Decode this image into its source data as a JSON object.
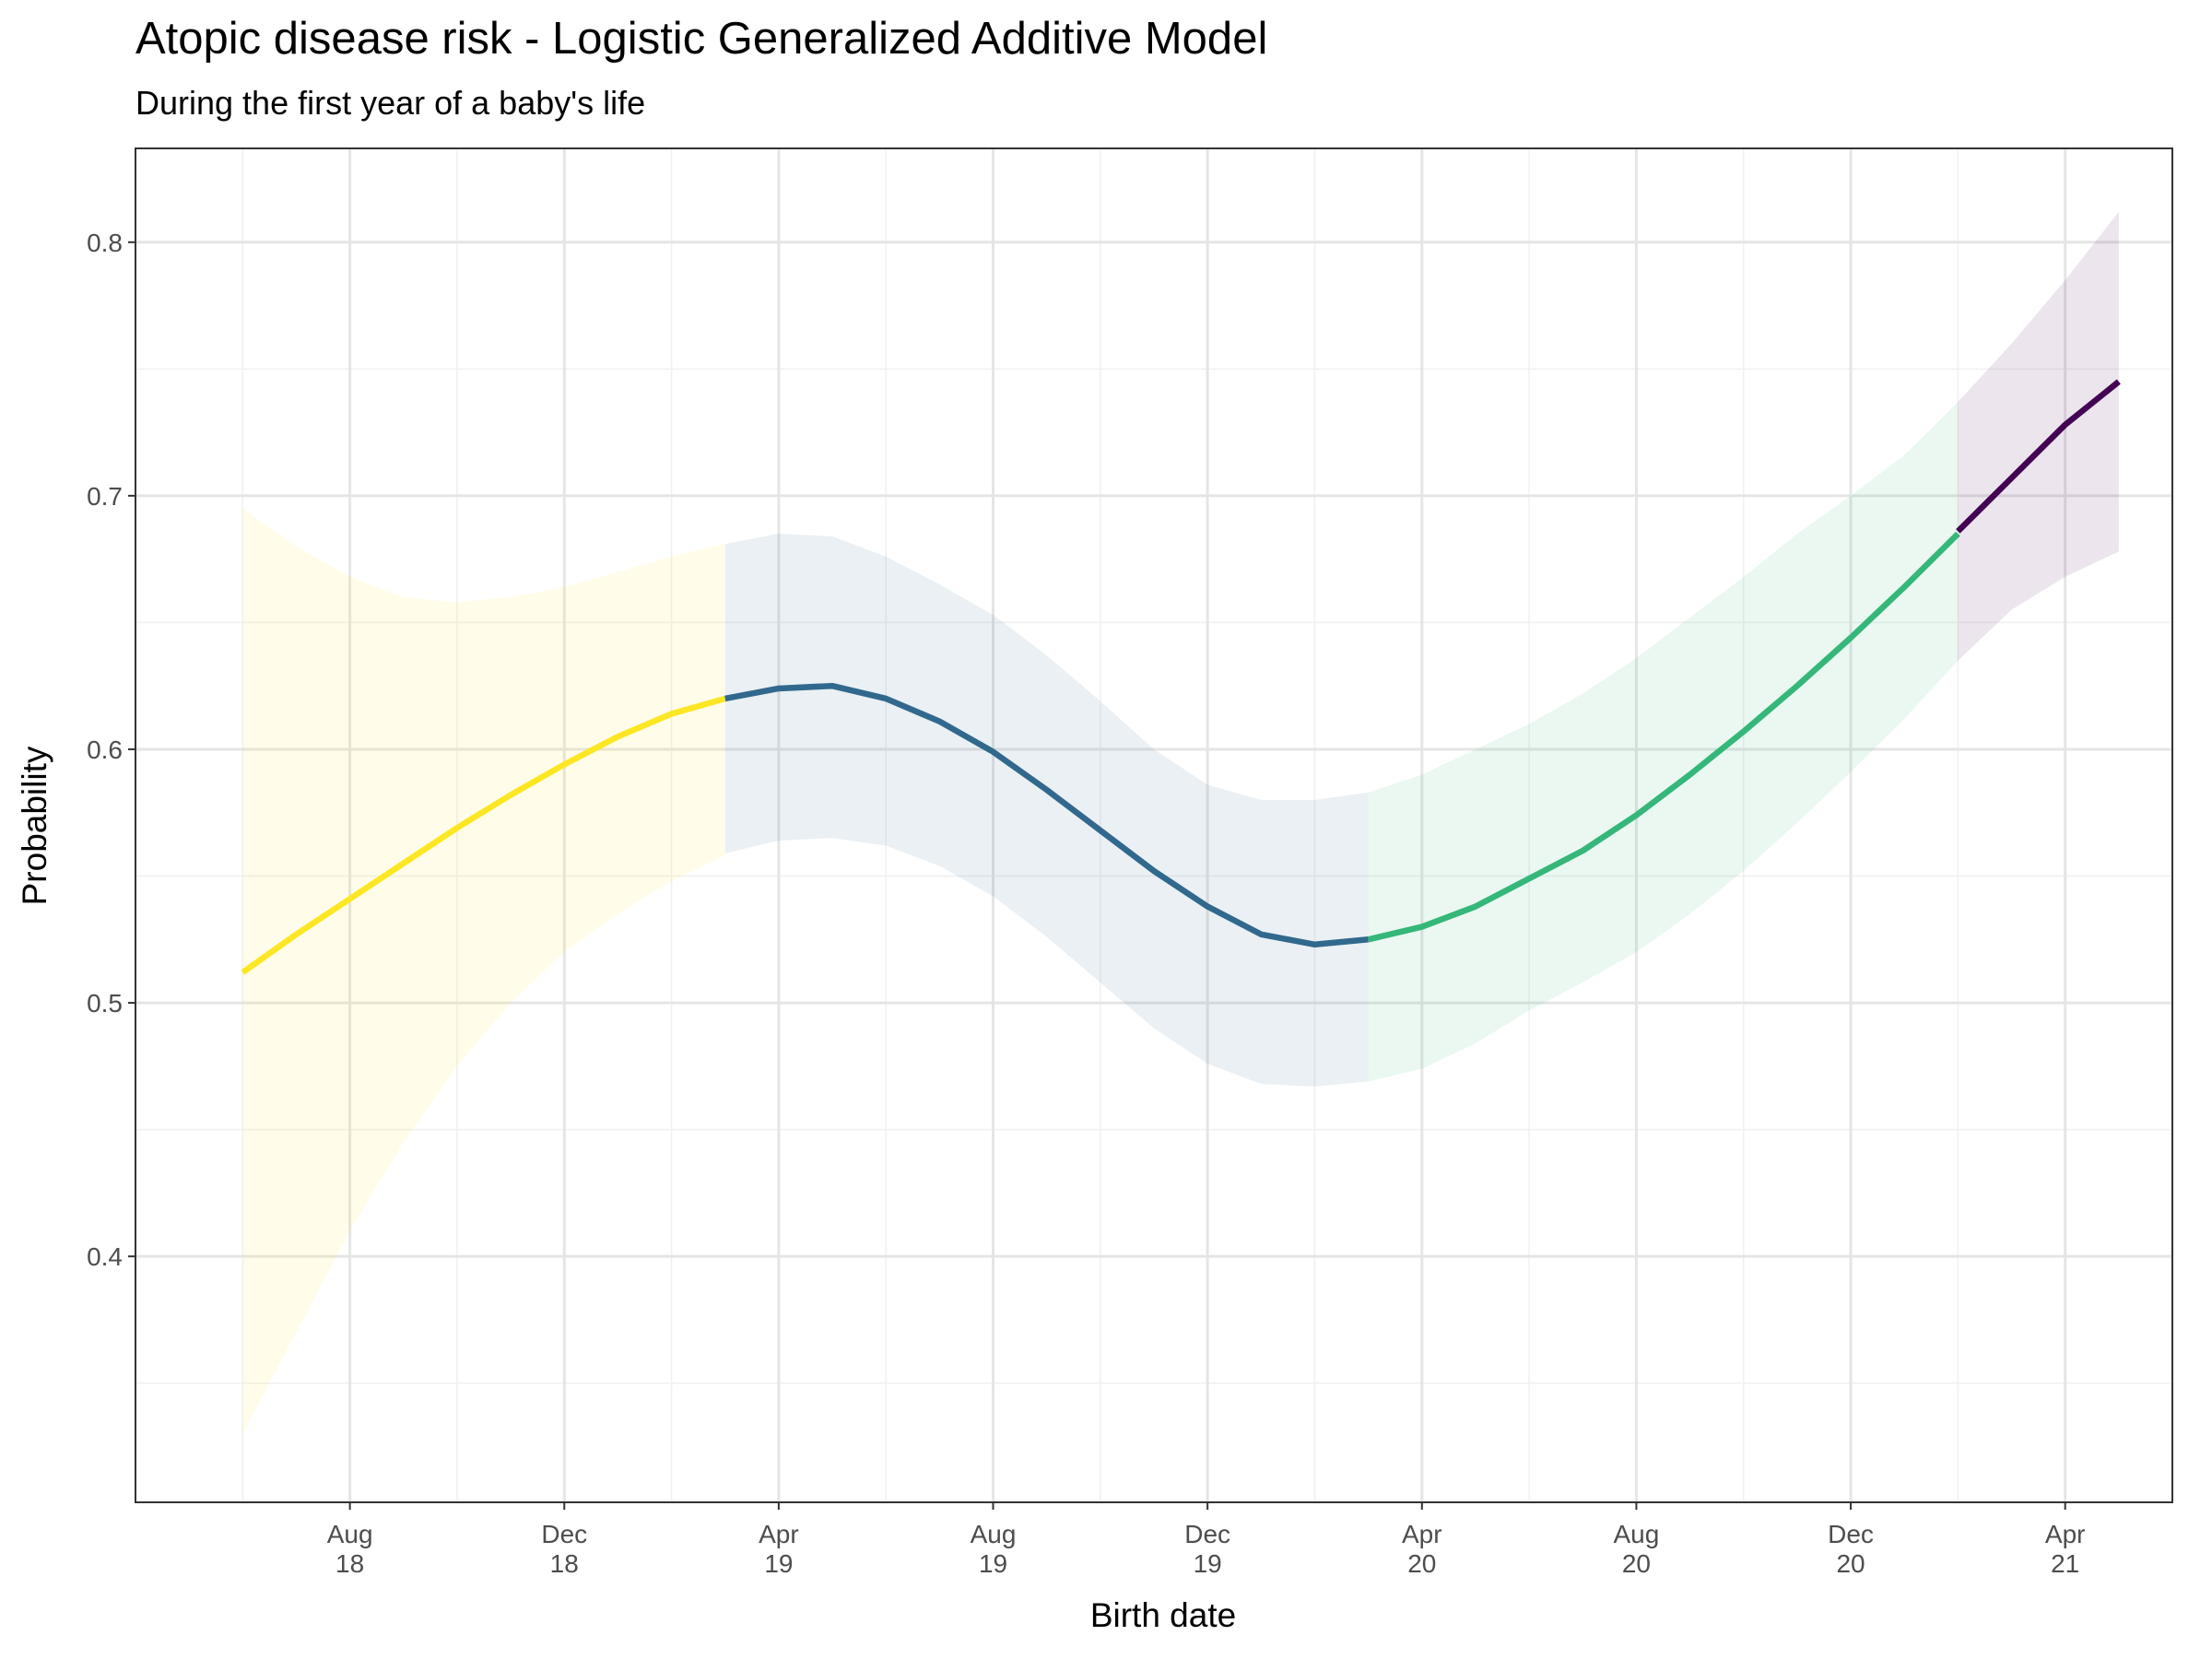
{
  "chart_data": {
    "type": "line",
    "title": "Atopic disease risk - Logistic Generalized Additive Model",
    "subtitle": "During the first year of a baby's life",
    "x_label": "Birth date",
    "y_label": "Probability",
    "xlim": [
      "2018-04",
      "2021-06"
    ],
    "xticks": [
      {
        "value": "2018-08",
        "label": "Aug 18"
      },
      {
        "value": "2018-12",
        "label": "Dec 18"
      },
      {
        "value": "2019-04",
        "label": "Apr 19"
      },
      {
        "value": "2019-08",
        "label": "Aug 19"
      },
      {
        "value": "2019-12",
        "label": "Dec 19"
      },
      {
        "value": "2020-04",
        "label": "Apr 20"
      },
      {
        "value": "2020-08",
        "label": "Aug 20"
      },
      {
        "value": "2020-12",
        "label": "Dec 20"
      },
      {
        "value": "2021-04",
        "label": "Apr 21"
      }
    ],
    "ylim": [
      0.303,
      0.837
    ],
    "yticks": [
      0.4,
      0.5,
      0.6,
      0.7,
      0.8
    ],
    "grid": true,
    "series": [
      {
        "color": "#fde725",
        "x": [
          "2018-06",
          "2018-07",
          "2018-08",
          "2018-09",
          "2018-10",
          "2018-11",
          "2018-12",
          "2019-01",
          "2019-02",
          "2019-03"
        ],
        "values": [
          0.512,
          0.527,
          0.541,
          0.555,
          0.569,
          0.582,
          0.594,
          0.605,
          0.614,
          0.62
        ],
        "lower": [
          0.33,
          0.37,
          0.41,
          0.445,
          0.475,
          0.5,
          0.52,
          0.535,
          0.548,
          0.558
        ],
        "upper": [
          0.695,
          0.68,
          0.668,
          0.66,
          0.658,
          0.66,
          0.664,
          0.67,
          0.676,
          0.681
        ]
      },
      {
        "color": "#31688e",
        "x": [
          "2019-03",
          "2019-04",
          "2019-05",
          "2019-06",
          "2019-07",
          "2019-08",
          "2019-09",
          "2019-10",
          "2019-11",
          "2019-12",
          "2020-01",
          "2020-02",
          "2020-03"
        ],
        "values": [
          0.62,
          0.624,
          0.625,
          0.62,
          0.611,
          0.599,
          0.584,
          0.568,
          0.552,
          0.538,
          0.527,
          0.523,
          0.525
        ],
        "lower": [
          0.559,
          0.564,
          0.565,
          0.562,
          0.554,
          0.542,
          0.526,
          0.508,
          0.49,
          0.476,
          0.468,
          0.467,
          0.469
        ],
        "upper": [
          0.681,
          0.685,
          0.684,
          0.676,
          0.665,
          0.653,
          0.637,
          0.619,
          0.6,
          0.586,
          0.58,
          0.58,
          0.583
        ]
      },
      {
        "color": "#35b779",
        "x": [
          "2020-03",
          "2020-04",
          "2020-05",
          "2020-06",
          "2020-07",
          "2020-08",
          "2020-09",
          "2020-10",
          "2020-11",
          "2020-12",
          "2021-01",
          "2021-02"
        ],
        "values": [
          0.525,
          0.53,
          0.538,
          0.549,
          0.56,
          0.574,
          0.59,
          0.607,
          0.625,
          0.644,
          0.664,
          0.685
        ],
        "lower": [
          0.469,
          0.474,
          0.484,
          0.497,
          0.508,
          0.52,
          0.535,
          0.552,
          0.571,
          0.591,
          0.612,
          0.635
        ],
        "upper": [
          0.583,
          0.59,
          0.6,
          0.61,
          0.622,
          0.636,
          0.652,
          0.668,
          0.685,
          0.7,
          0.716,
          0.737
        ]
      },
      {
        "color": "#440154",
        "x": [
          "2021-02",
          "2021-03",
          "2021-04",
          "2021-05"
        ],
        "values": [
          0.686,
          0.707,
          0.728,
          0.745
        ],
        "lower": [
          0.635,
          0.655,
          0.668,
          0.678
        ],
        "upper": [
          0.737,
          0.76,
          0.785,
          0.812
        ]
      }
    ]
  }
}
